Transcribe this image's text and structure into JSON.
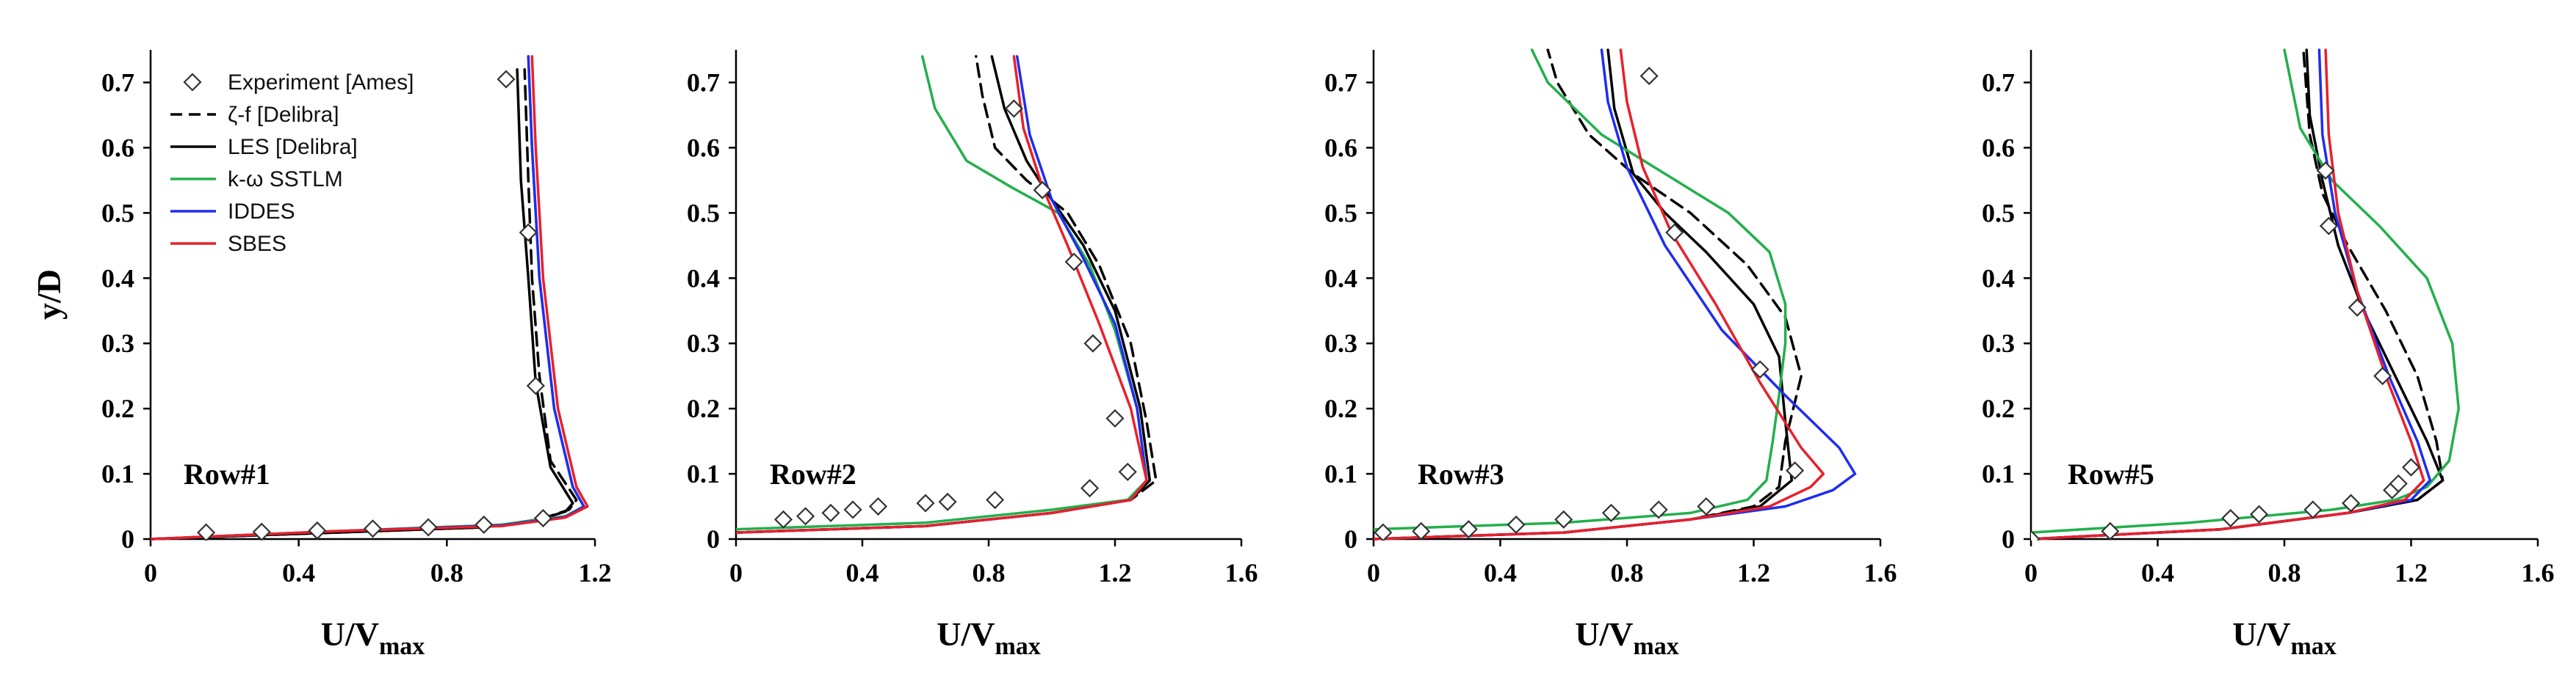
{
  "colors": {
    "experiment": "#333333",
    "zeta_f": "#000000",
    "les": "#000000",
    "k_omega": "#22b04b",
    "iddes": "#1f2df0",
    "sbes": "#e8202a"
  },
  "legend": [
    {
      "key": "experiment",
      "label": "Experiment [Ames]"
    },
    {
      "key": "zeta_f",
      "label": "ζ-f [Delibra]"
    },
    {
      "key": "les",
      "label": "LES [Delibra]"
    },
    {
      "key": "k_omega",
      "label": "k-ω SSTLM"
    },
    {
      "key": "iddes",
      "label": "IDDES"
    },
    {
      "key": "sbes",
      "label": "SBES"
    }
  ],
  "chart_data": [
    {
      "type": "line",
      "title": "Row#1",
      "xlabel": "U/V",
      "xlabel_sub": "max",
      "ylabel": "y/D",
      "xlim": [
        0,
        1.2
      ],
      "ylim": [
        0,
        0.75
      ],
      "xticks": [
        "0",
        "0.4",
        "0.8",
        "1.2"
      ],
      "yticks": [
        "0",
        "0.1",
        "0.2",
        "0.3",
        "0.4",
        "0.5",
        "0.6",
        "0.7"
      ],
      "experiment": {
        "x": [
          0.15,
          0.3,
          0.45,
          0.6,
          0.75,
          0.9,
          0.96,
          1.02,
          1.04,
          1.06
        ],
        "y": [
          0.01,
          0.011,
          0.013,
          0.016,
          0.018,
          0.022,
          0.705,
          0.47,
          0.235,
          0.032
        ]
      },
      "series": [
        {
          "key": "zeta_f",
          "dash": true,
          "x": [
            0,
            0.5,
            0.9,
            1.05,
            1.13,
            1.15,
            1.08,
            1.05,
            1.03,
            1.02,
            1.01
          ],
          "y": [
            0,
            0.01,
            0.018,
            0.03,
            0.045,
            0.06,
            0.12,
            0.25,
            0.4,
            0.55,
            0.72
          ]
        },
        {
          "key": "les",
          "dash": false,
          "x": [
            0,
            0.5,
            0.9,
            1.05,
            1.12,
            1.14,
            1.08,
            1.04,
            1.02,
            1.0,
            0.99
          ],
          "y": [
            0,
            0.01,
            0.018,
            0.03,
            0.042,
            0.055,
            0.11,
            0.24,
            0.4,
            0.55,
            0.72
          ]
        },
        {
          "key": "k_omega",
          "dash": false,
          "x": [
            0,
            0.5,
            0.95,
            1.12,
            1.17,
            1.14,
            1.09,
            1.05,
            1.03,
            1.02
          ],
          "y": [
            0,
            0.012,
            0.022,
            0.035,
            0.05,
            0.08,
            0.2,
            0.4,
            0.6,
            0.74
          ]
        },
        {
          "key": "iddes",
          "dash": false,
          "x": [
            0,
            0.5,
            0.95,
            1.12,
            1.17,
            1.14,
            1.09,
            1.05,
            1.03,
            1.02
          ],
          "y": [
            0,
            0.012,
            0.021,
            0.034,
            0.05,
            0.08,
            0.2,
            0.4,
            0.6,
            0.74
          ]
        },
        {
          "key": "sbes",
          "dash": false,
          "x": [
            0,
            0.5,
            0.95,
            1.12,
            1.18,
            1.15,
            1.1,
            1.06,
            1.04,
            1.03
          ],
          "y": [
            0,
            0.012,
            0.02,
            0.033,
            0.05,
            0.08,
            0.2,
            0.4,
            0.6,
            0.74
          ]
        }
      ]
    },
    {
      "type": "line",
      "title": "Row#2",
      "xlabel": "U/V",
      "xlabel_sub": "max",
      "ylabel": "",
      "xlim": [
        0,
        1.6
      ],
      "ylim": [
        0,
        0.75
      ],
      "xticks": [
        "0",
        "0.4",
        "0.8",
        "1.2",
        "1.6"
      ],
      "yticks": [
        "0",
        "0.1",
        "0.2",
        "0.3",
        "0.4",
        "0.5",
        "0.6",
        "0.7"
      ],
      "experiment": {
        "x": [
          0.15,
          0.22,
          0.3,
          0.37,
          0.45,
          0.6,
          0.67,
          0.82,
          1.12,
          1.2,
          1.24,
          1.13,
          1.07,
          0.97,
          0.88
        ],
        "y": [
          0.03,
          0.035,
          0.04,
          0.045,
          0.05,
          0.055,
          0.057,
          0.06,
          0.078,
          0.185,
          0.103,
          0.3,
          0.425,
          0.535,
          0.66
        ]
      },
      "series": [
        {
          "key": "zeta_f",
          "dash": true,
          "x": [
            0,
            0.6,
            1.0,
            1.25,
            1.33,
            1.3,
            1.25,
            1.15,
            1.05,
            0.92,
            0.82,
            0.78,
            0.76
          ],
          "y": [
            0.01,
            0.02,
            0.04,
            0.06,
            0.09,
            0.18,
            0.3,
            0.42,
            0.5,
            0.55,
            0.6,
            0.68,
            0.74
          ]
        },
        {
          "key": "les",
          "dash": false,
          "x": [
            0,
            0.6,
            1.0,
            1.25,
            1.31,
            1.28,
            1.2,
            1.1,
            1.0,
            0.92,
            0.85,
            0.81
          ],
          "y": [
            0.01,
            0.02,
            0.04,
            0.06,
            0.09,
            0.2,
            0.35,
            0.45,
            0.52,
            0.58,
            0.66,
            0.74
          ]
        },
        {
          "key": "k_omega",
          "dash": false,
          "x": [
            0,
            0.6,
            1.0,
            1.24,
            1.3,
            1.27,
            1.2,
            1.12,
            1.02,
            0.87,
            0.73,
            0.63,
            0.59
          ],
          "y": [
            0.015,
            0.025,
            0.045,
            0.06,
            0.09,
            0.2,
            0.32,
            0.42,
            0.5,
            0.54,
            0.58,
            0.66,
            0.74
          ]
        },
        {
          "key": "iddes",
          "dash": false,
          "x": [
            0,
            0.6,
            1.0,
            1.25,
            1.3,
            1.27,
            1.2,
            1.1,
            1.0,
            0.93,
            0.89
          ],
          "y": [
            0.01,
            0.02,
            0.04,
            0.06,
            0.09,
            0.2,
            0.33,
            0.43,
            0.52,
            0.62,
            0.74
          ]
        },
        {
          "key": "sbes",
          "dash": false,
          "x": [
            0,
            0.6,
            1.0,
            1.25,
            1.3,
            1.25,
            1.15,
            1.05,
            0.97,
            0.91,
            0.88
          ],
          "y": [
            0.01,
            0.02,
            0.04,
            0.06,
            0.09,
            0.2,
            0.33,
            0.45,
            0.54,
            0.63,
            0.74
          ]
        }
      ]
    },
    {
      "type": "line",
      "title": "Row#3",
      "xlabel": "U/V",
      "xlabel_sub": "max",
      "ylabel": "",
      "xlim": [
        0,
        1.6
      ],
      "ylim": [
        0,
        0.75
      ],
      "xticks": [
        "0",
        "0.4",
        "0.8",
        "1.2",
        "1.6"
      ],
      "yticks": [
        "0",
        "0.1",
        "0.2",
        "0.3",
        "0.4",
        "0.5",
        "0.6",
        "0.7"
      ],
      "experiment": {
        "x": [
          0.03,
          0.15,
          0.3,
          0.45,
          0.6,
          0.75,
          0.9,
          1.05,
          1.33,
          1.22,
          0.95,
          0.87
        ],
        "y": [
          0.01,
          0.012,
          0.015,
          0.022,
          0.03,
          0.04,
          0.045,
          0.05,
          0.105,
          0.26,
          0.47,
          0.71
        ]
      },
      "series": [
        {
          "key": "zeta_f",
          "dash": true,
          "x": [
            0,
            0.6,
            1.0,
            1.2,
            1.28,
            1.3,
            1.35,
            1.3,
            1.18,
            1.0,
            0.82,
            0.68,
            0.58,
            0.55
          ],
          "y": [
            0,
            0.01,
            0.03,
            0.05,
            0.08,
            0.15,
            0.25,
            0.34,
            0.42,
            0.5,
            0.56,
            0.62,
            0.7,
            0.75
          ]
        },
        {
          "key": "les",
          "dash": false,
          "x": [
            0,
            0.6,
            1.0,
            1.22,
            1.32,
            1.3,
            1.28,
            1.2,
            1.05,
            0.92,
            0.82,
            0.76,
            0.74
          ],
          "y": [
            0,
            0.01,
            0.03,
            0.05,
            0.09,
            0.18,
            0.28,
            0.36,
            0.44,
            0.5,
            0.56,
            0.66,
            0.75
          ]
        },
        {
          "key": "k_omega",
          "dash": false,
          "x": [
            0,
            0.6,
            1.0,
            1.18,
            1.24,
            1.26,
            1.28,
            1.3,
            1.3,
            1.25,
            1.12,
            0.92,
            0.72,
            0.55,
            0.5
          ],
          "y": [
            0.015,
            0.025,
            0.04,
            0.06,
            0.09,
            0.15,
            0.22,
            0.3,
            0.36,
            0.44,
            0.5,
            0.56,
            0.62,
            0.7,
            0.75
          ]
        },
        {
          "key": "iddes",
          "dash": false,
          "x": [
            0,
            0.6,
            1.0,
            1.3,
            1.45,
            1.52,
            1.47,
            1.3,
            1.1,
            0.92,
            0.8,
            0.74,
            0.72
          ],
          "y": [
            0,
            0.01,
            0.03,
            0.05,
            0.075,
            0.1,
            0.14,
            0.22,
            0.32,
            0.45,
            0.57,
            0.67,
            0.75
          ]
        },
        {
          "key": "sbes",
          "dash": false,
          "x": [
            0,
            0.6,
            1.0,
            1.25,
            1.38,
            1.42,
            1.35,
            1.22,
            1.08,
            0.94,
            0.85,
            0.8,
            0.78
          ],
          "y": [
            0,
            0.01,
            0.03,
            0.05,
            0.08,
            0.1,
            0.14,
            0.24,
            0.36,
            0.47,
            0.57,
            0.67,
            0.75
          ]
        }
      ]
    },
    {
      "type": "line",
      "title": "Row#5",
      "xlabel": "U/V",
      "xlabel_sub": "max",
      "ylabel": "",
      "xlim": [
        0,
        1.6
      ],
      "ylim": [
        0,
        0.75
      ],
      "xticks": [
        "0",
        "0.4",
        "0.8",
        "1.2",
        "1.6"
      ],
      "yticks": [
        "0",
        "0.1",
        "0.2",
        "0.3",
        "0.4",
        "0.5",
        "0.6",
        "0.7"
      ],
      "experiment": {
        "x": [
          0.0,
          0.25,
          0.63,
          0.72,
          0.89,
          1.01,
          1.14,
          1.16,
          1.2,
          1.11,
          1.03,
          0.94,
          0.93
        ],
        "y": [
          0.0,
          0.012,
          0.032,
          0.038,
          0.045,
          0.055,
          0.075,
          0.085,
          0.11,
          0.25,
          0.355,
          0.48,
          0.565
        ]
      },
      "series": [
        {
          "key": "zeta_f",
          "dash": true,
          "x": [
            0,
            0.6,
            1.0,
            1.22,
            1.3,
            1.28,
            1.22,
            1.12,
            1.0,
            0.92,
            0.88,
            0.86
          ],
          "y": [
            0,
            0.015,
            0.04,
            0.06,
            0.09,
            0.15,
            0.25,
            0.35,
            0.45,
            0.53,
            0.62,
            0.75
          ]
        },
        {
          "key": "les",
          "dash": false,
          "x": [
            0,
            0.6,
            1.0,
            1.22,
            1.3,
            1.25,
            1.15,
            1.05,
            0.97,
            0.92,
            0.88,
            0.87
          ],
          "y": [
            0,
            0.015,
            0.04,
            0.06,
            0.09,
            0.15,
            0.25,
            0.35,
            0.45,
            0.55,
            0.65,
            0.75
          ]
        },
        {
          "key": "k_omega",
          "dash": false,
          "x": [
            0,
            0.5,
            0.95,
            1.15,
            1.25,
            1.32,
            1.35,
            1.33,
            1.25,
            1.1,
            0.95,
            0.85,
            0.8
          ],
          "y": [
            0.01,
            0.025,
            0.045,
            0.06,
            0.08,
            0.12,
            0.2,
            0.3,
            0.4,
            0.48,
            0.55,
            0.63,
            0.75
          ]
        },
        {
          "key": "iddes",
          "dash": false,
          "x": [
            0,
            0.6,
            1.0,
            1.2,
            1.26,
            1.22,
            1.13,
            1.03,
            0.96,
            0.92,
            0.91
          ],
          "y": [
            0,
            0.015,
            0.04,
            0.06,
            0.09,
            0.15,
            0.25,
            0.38,
            0.5,
            0.62,
            0.75
          ]
        },
        {
          "key": "sbes",
          "dash": false,
          "x": [
            0,
            0.6,
            1.0,
            1.18,
            1.24,
            1.2,
            1.12,
            1.03,
            0.97,
            0.94,
            0.93
          ],
          "y": [
            0,
            0.015,
            0.04,
            0.06,
            0.09,
            0.15,
            0.25,
            0.38,
            0.5,
            0.62,
            0.75
          ]
        }
      ]
    }
  ]
}
